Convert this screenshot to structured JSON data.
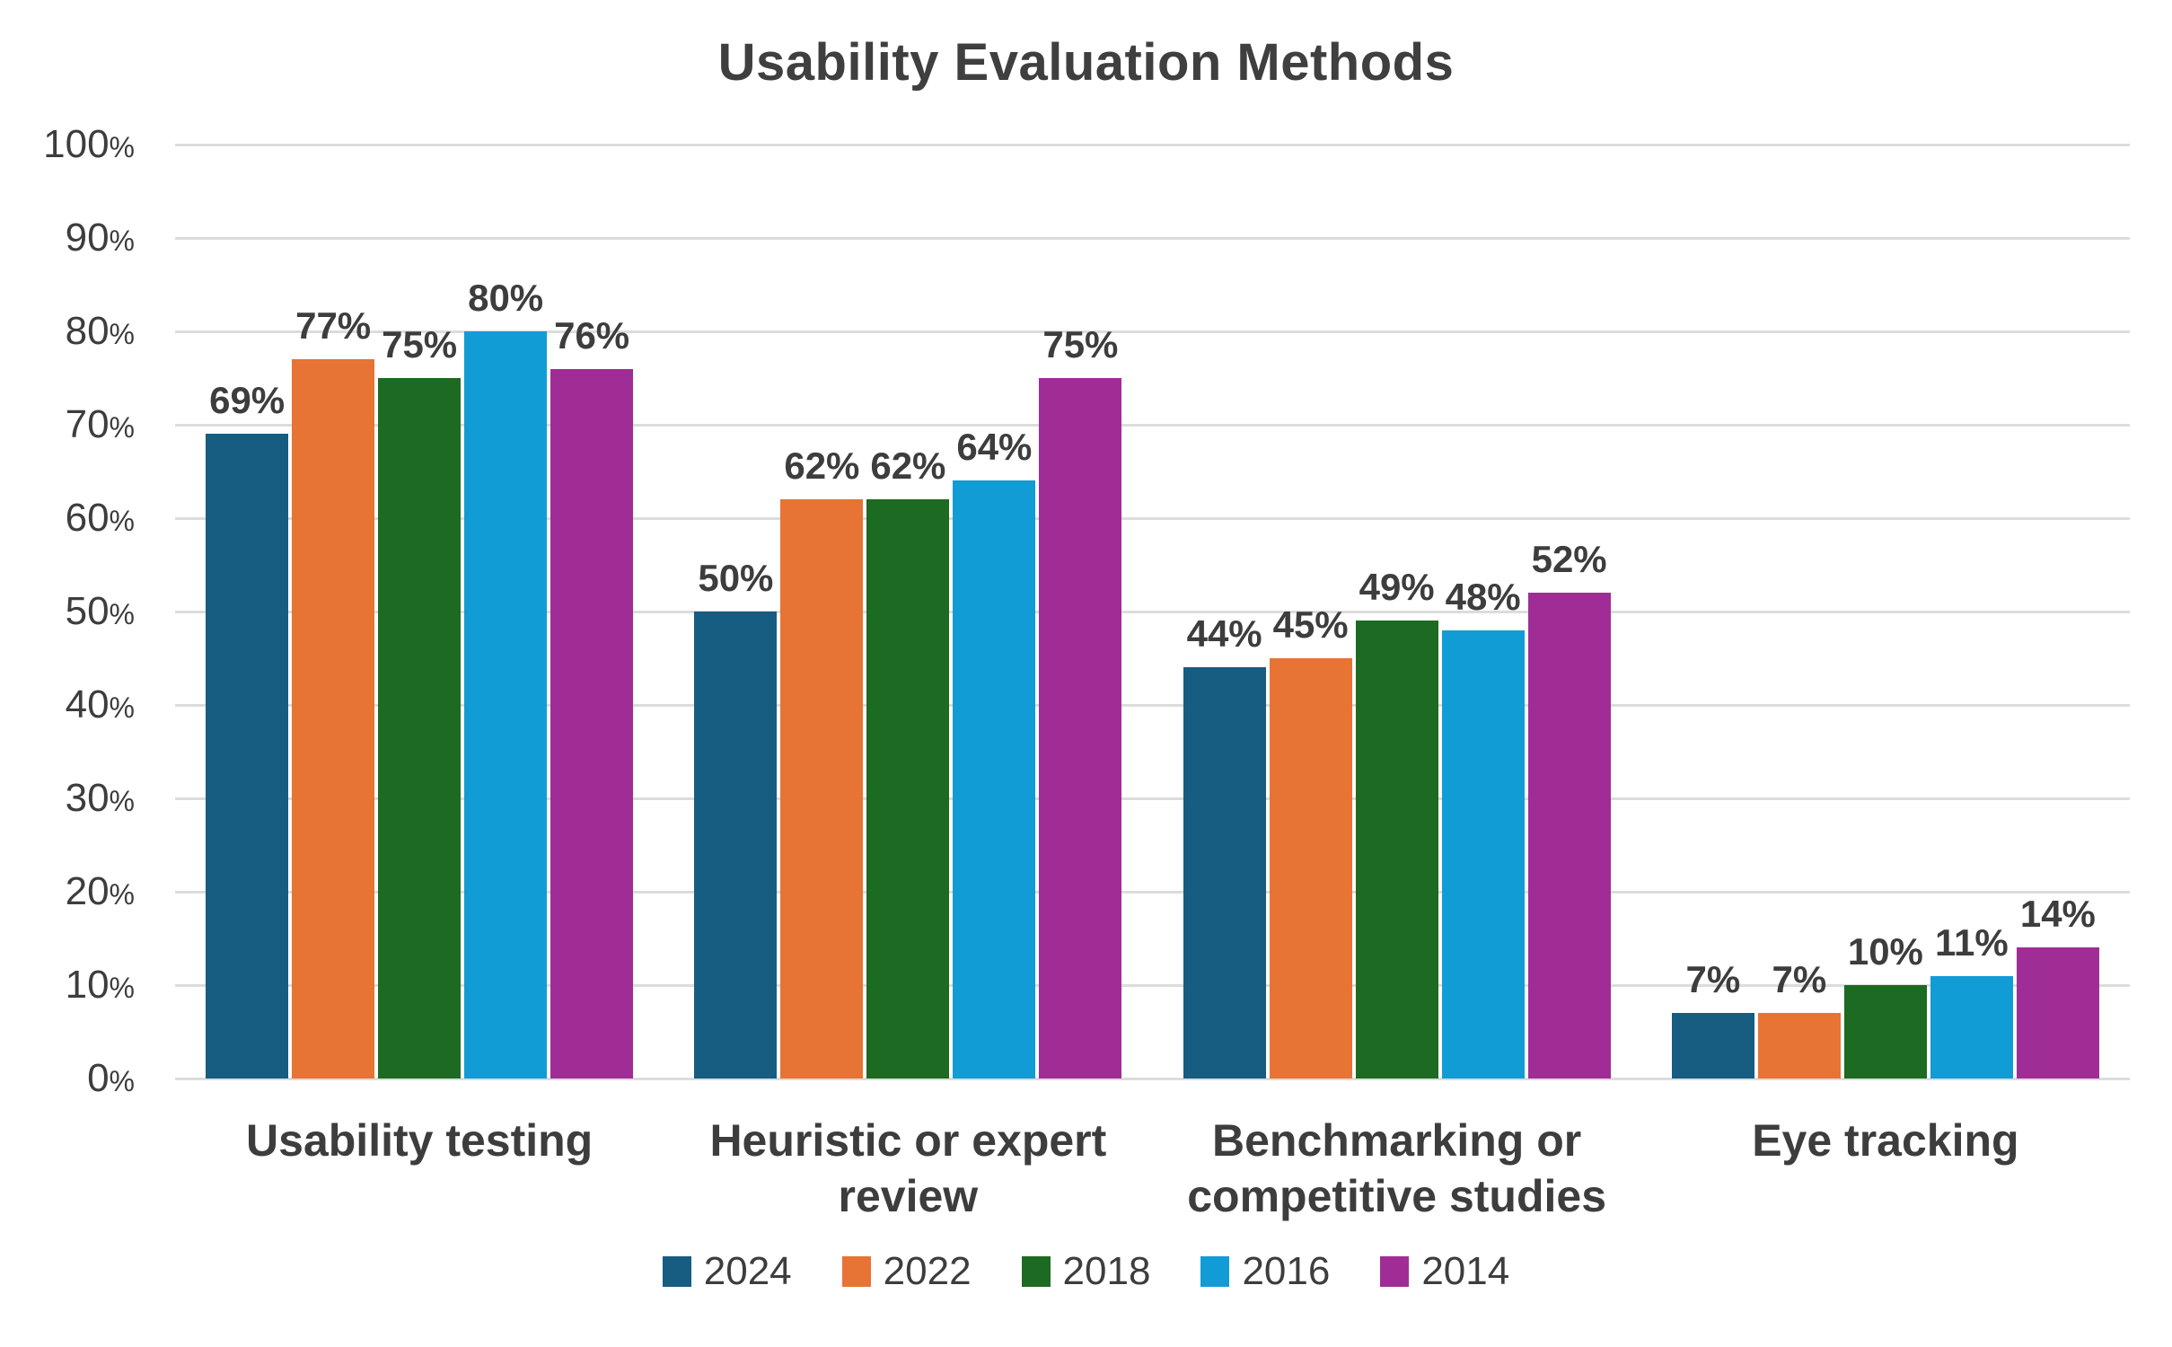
{
  "title": "Usability Evaluation Methods",
  "chart_data": {
    "type": "bar",
    "title": "Usability Evaluation Methods",
    "categories": [
      "Usability testing",
      "Heuristic or expert review",
      "Benchmarking or competitive studies",
      "Eye tracking"
    ],
    "series": [
      {
        "name": "2024",
        "color": "#175C81",
        "values": [
          69,
          50,
          44,
          7
        ]
      },
      {
        "name": "2022",
        "color": "#E77334",
        "values": [
          77,
          62,
          45,
          7
        ]
      },
      {
        "name": "2018",
        "color": "#1D6A22",
        "values": [
          75,
          62,
          49,
          10
        ]
      },
      {
        "name": "2016",
        "color": "#129CD6",
        "values": [
          80,
          64,
          48,
          11
        ]
      },
      {
        "name": "2014",
        "color": "#A02D96",
        "values": [
          76,
          75,
          52,
          14
        ]
      }
    ],
    "y_axis": {
      "min": 0,
      "max": 100,
      "tick_step": 10,
      "tick_suffix": "%"
    },
    "data_label_suffix": "%",
    "grid": true,
    "legend_position": "bottom",
    "text_color": "#3d3d3d",
    "gridline_color": "#dcdcdc"
  }
}
